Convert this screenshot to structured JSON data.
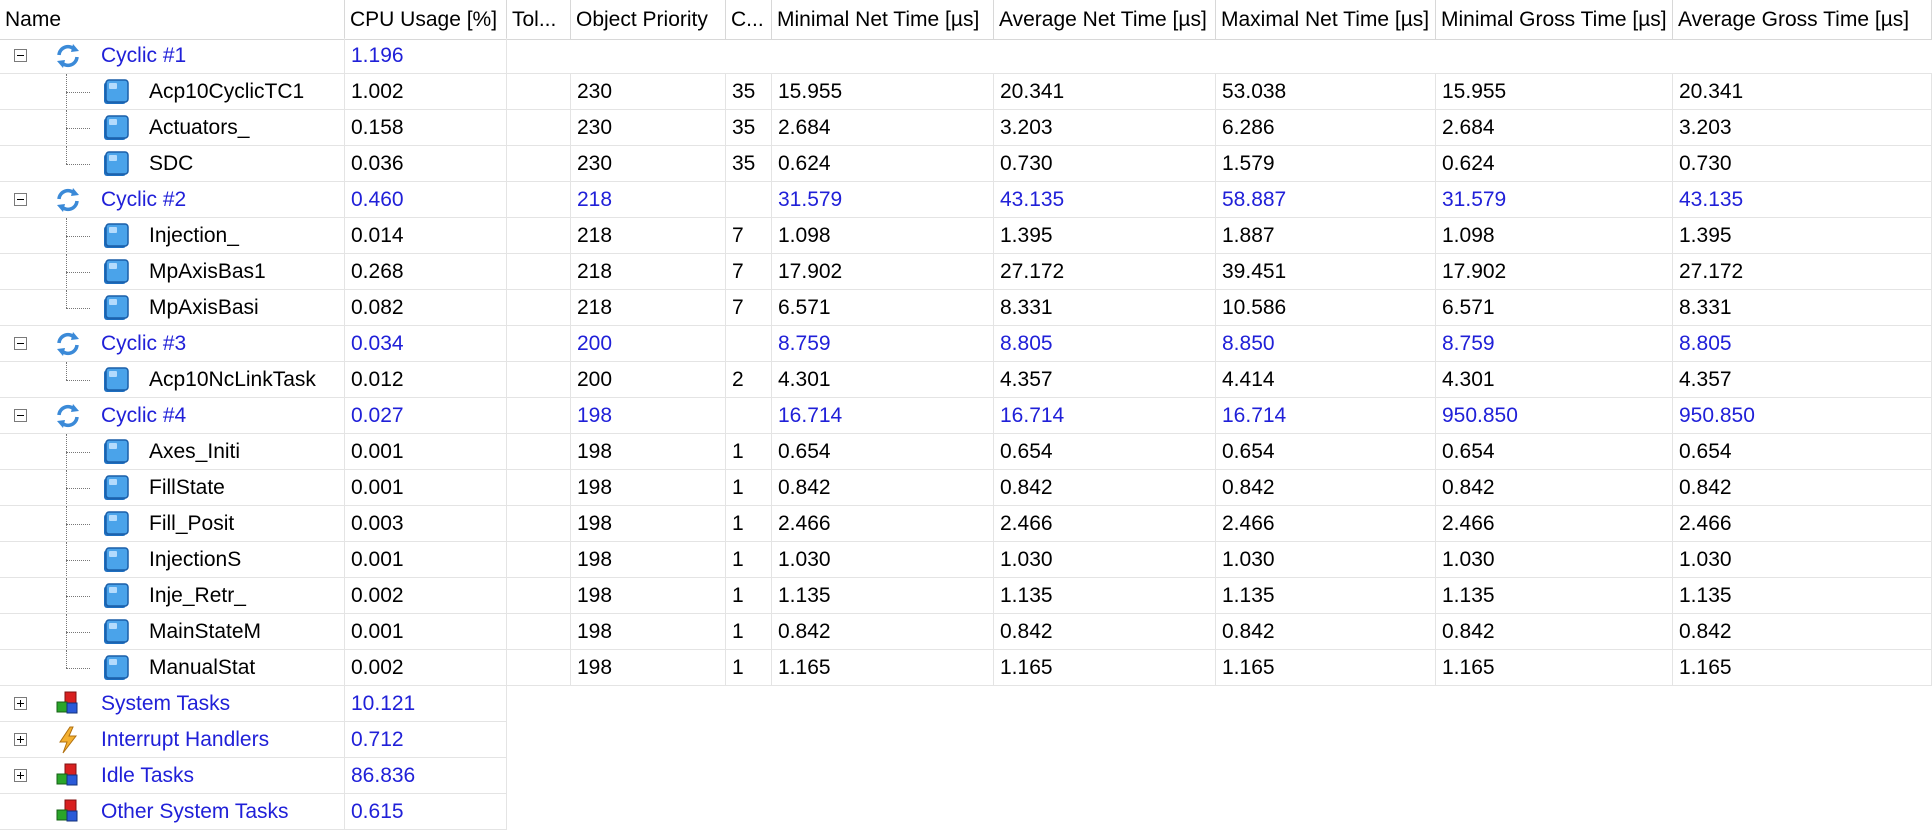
{
  "columns": [
    {
      "key": "name",
      "label": "Name"
    },
    {
      "key": "cpu",
      "label": "CPU Usage [%]"
    },
    {
      "key": "tol",
      "label": "Tol..."
    },
    {
      "key": "prio",
      "label": "Object Priority"
    },
    {
      "key": "c",
      "label": "C..."
    },
    {
      "key": "min_net",
      "label": "Minimal Net Time [µs]"
    },
    {
      "key": "avg_net",
      "label": "Average Net Time [µs]"
    },
    {
      "key": "max_net",
      "label": "Maximal Net Time [µs]"
    },
    {
      "key": "min_gross",
      "label": "Minimal Gross Time [µs]"
    },
    {
      "key": "avg_gross",
      "label": "Average Gross Time [µs]"
    }
  ],
  "rows": [
    {
      "type": "group",
      "icon": "cyclic-refresh-icon",
      "expander": "collapse",
      "name": "Cyclic #1",
      "cpu": "1.196",
      "tol": "",
      "prio": "",
      "c": "",
      "min_net": "",
      "avg_net": "",
      "max_net": "",
      "min_gross": "",
      "avg_gross": ""
    },
    {
      "type": "leaf",
      "icon": "task-cube-icon",
      "name": "Acp10CyclicTC1",
      "cpu": "1.002",
      "tol": "",
      "prio": "230",
      "c": "35",
      "min_net": "15.955",
      "avg_net": "20.341",
      "max_net": "53.038",
      "min_gross": "15.955",
      "avg_gross": "20.341"
    },
    {
      "type": "leaf",
      "icon": "task-cube-icon",
      "name": "Actuators_",
      "cpu": "0.158",
      "tol": "",
      "prio": "230",
      "c": "35",
      "min_net": "2.684",
      "avg_net": "3.203",
      "max_net": "6.286",
      "min_gross": "2.684",
      "avg_gross": "3.203"
    },
    {
      "type": "leaf",
      "icon": "task-cube-icon",
      "last": true,
      "name": "SDC",
      "cpu": "0.036",
      "tol": "",
      "prio": "230",
      "c": "35",
      "min_net": "0.624",
      "avg_net": "0.730",
      "max_net": "1.579",
      "min_gross": "0.624",
      "avg_gross": "0.730"
    },
    {
      "type": "group",
      "icon": "cyclic-refresh-icon",
      "expander": "collapse",
      "name": "Cyclic #2",
      "cpu": "0.460",
      "tol": "",
      "prio": "218",
      "c": "",
      "min_net": "31.579",
      "avg_net": "43.135",
      "max_net": "58.887",
      "min_gross": "31.579",
      "avg_gross": "43.135"
    },
    {
      "type": "leaf",
      "icon": "task-cube-icon",
      "name": "Injection_",
      "cpu": "0.014",
      "tol": "",
      "prio": "218",
      "c": "7",
      "min_net": "1.098",
      "avg_net": "1.395",
      "max_net": "1.887",
      "min_gross": "1.098",
      "avg_gross": "1.395"
    },
    {
      "type": "leaf",
      "icon": "task-cube-icon",
      "name": "MpAxisBas1",
      "cpu": "0.268",
      "tol": "",
      "prio": "218",
      "c": "7",
      "min_net": "17.902",
      "avg_net": "27.172",
      "max_net": "39.451",
      "min_gross": "17.902",
      "avg_gross": "27.172"
    },
    {
      "type": "leaf",
      "icon": "task-cube-icon",
      "last": true,
      "name": "MpAxisBasi",
      "cpu": "0.082",
      "tol": "",
      "prio": "218",
      "c": "7",
      "min_net": "6.571",
      "avg_net": "8.331",
      "max_net": "10.586",
      "min_gross": "6.571",
      "avg_gross": "8.331"
    },
    {
      "type": "group",
      "icon": "cyclic-refresh-icon",
      "expander": "collapse",
      "name": "Cyclic #3",
      "cpu": "0.034",
      "tol": "",
      "prio": "200",
      "c": "",
      "min_net": "8.759",
      "avg_net": "8.805",
      "max_net": "8.850",
      "min_gross": "8.759",
      "avg_gross": "8.805"
    },
    {
      "type": "leaf",
      "icon": "task-cube-icon",
      "last": true,
      "name": "Acp10NcLinkTask",
      "cpu": "0.012",
      "tol": "",
      "prio": "200",
      "c": "2",
      "min_net": "4.301",
      "avg_net": "4.357",
      "max_net": "4.414",
      "min_gross": "4.301",
      "avg_gross": "4.357"
    },
    {
      "type": "group",
      "icon": "cyclic-refresh-icon",
      "expander": "collapse",
      "name": "Cyclic #4",
      "cpu": "0.027",
      "tol": "",
      "prio": "198",
      "c": "",
      "min_net": "16.714",
      "avg_net": "16.714",
      "max_net": "16.714",
      "min_gross": "950.850",
      "avg_gross": "950.850"
    },
    {
      "type": "leaf",
      "icon": "task-cube-icon",
      "name": "Axes_Initi",
      "cpu": "0.001",
      "tol": "",
      "prio": "198",
      "c": "1",
      "min_net": "0.654",
      "avg_net": "0.654",
      "max_net": "0.654",
      "min_gross": "0.654",
      "avg_gross": "0.654"
    },
    {
      "type": "leaf",
      "icon": "task-cube-icon",
      "name": "FillState",
      "cpu": "0.001",
      "tol": "",
      "prio": "198",
      "c": "1",
      "min_net": "0.842",
      "avg_net": "0.842",
      "max_net": "0.842",
      "min_gross": "0.842",
      "avg_gross": "0.842"
    },
    {
      "type": "leaf",
      "icon": "task-cube-icon",
      "name": "Fill_Posit",
      "cpu": "0.003",
      "tol": "",
      "prio": "198",
      "c": "1",
      "min_net": "2.466",
      "avg_net": "2.466",
      "max_net": "2.466",
      "min_gross": "2.466",
      "avg_gross": "2.466"
    },
    {
      "type": "leaf",
      "icon": "task-cube-icon",
      "name": "InjectionS",
      "cpu": "0.001",
      "tol": "",
      "prio": "198",
      "c": "1",
      "min_net": "1.030",
      "avg_net": "1.030",
      "max_net": "1.030",
      "min_gross": "1.030",
      "avg_gross": "1.030"
    },
    {
      "type": "leaf",
      "icon": "task-cube-icon",
      "name": "Inje_Retr_",
      "cpu": "0.002",
      "tol": "",
      "prio": "198",
      "c": "1",
      "min_net": "1.135",
      "avg_net": "1.135",
      "max_net": "1.135",
      "min_gross": "1.135",
      "avg_gross": "1.135"
    },
    {
      "type": "leaf",
      "icon": "task-cube-icon",
      "name": "MainStateM",
      "cpu": "0.001",
      "tol": "",
      "prio": "198",
      "c": "1",
      "min_net": "0.842",
      "avg_net": "0.842",
      "max_net": "0.842",
      "min_gross": "0.842",
      "avg_gross": "0.842"
    },
    {
      "type": "leaf",
      "icon": "task-cube-icon",
      "last": true,
      "name": "ManualStat",
      "cpu": "0.002",
      "tol": "",
      "prio": "198",
      "c": "1",
      "min_net": "1.165",
      "avg_net": "1.165",
      "max_net": "1.165",
      "min_gross": "1.165",
      "avg_gross": "1.165"
    },
    {
      "type": "group",
      "icon": "system-tasks-icon",
      "expander": "expand",
      "name": "System Tasks",
      "cpu": "10.121",
      "tol": "",
      "prio": "",
      "c": "",
      "min_net": "",
      "avg_net": "",
      "max_net": "",
      "min_gross": "",
      "avg_gross": ""
    },
    {
      "type": "group",
      "icon": "lightning-icon",
      "expander": "expand",
      "name": "Interrupt Handlers",
      "cpu": "0.712",
      "tol": "",
      "prio": "",
      "c": "",
      "min_net": "",
      "avg_net": "",
      "max_net": "",
      "min_gross": "",
      "avg_gross": ""
    },
    {
      "type": "group",
      "icon": "system-tasks-icon",
      "expander": "expand",
      "name": "Idle Tasks",
      "cpu": "86.836",
      "tol": "",
      "prio": "",
      "c": "",
      "min_net": "",
      "avg_net": "",
      "max_net": "",
      "min_gross": "",
      "avg_gross": ""
    },
    {
      "type": "group",
      "icon": "system-tasks-icon",
      "expander": "none",
      "name": "Other System Tasks",
      "cpu": "0.615",
      "tol": "",
      "prio": "",
      "c": "",
      "min_net": "",
      "avg_net": "",
      "max_net": "",
      "min_gross": "",
      "avg_gross": ""
    }
  ],
  "colors": {
    "group_text": "#2020d8",
    "leaf_text": "#000000",
    "grid_line": "#e4e4e4",
    "cube_icon": "#3c8fd8",
    "lightning_icon": "#f0a020"
  }
}
